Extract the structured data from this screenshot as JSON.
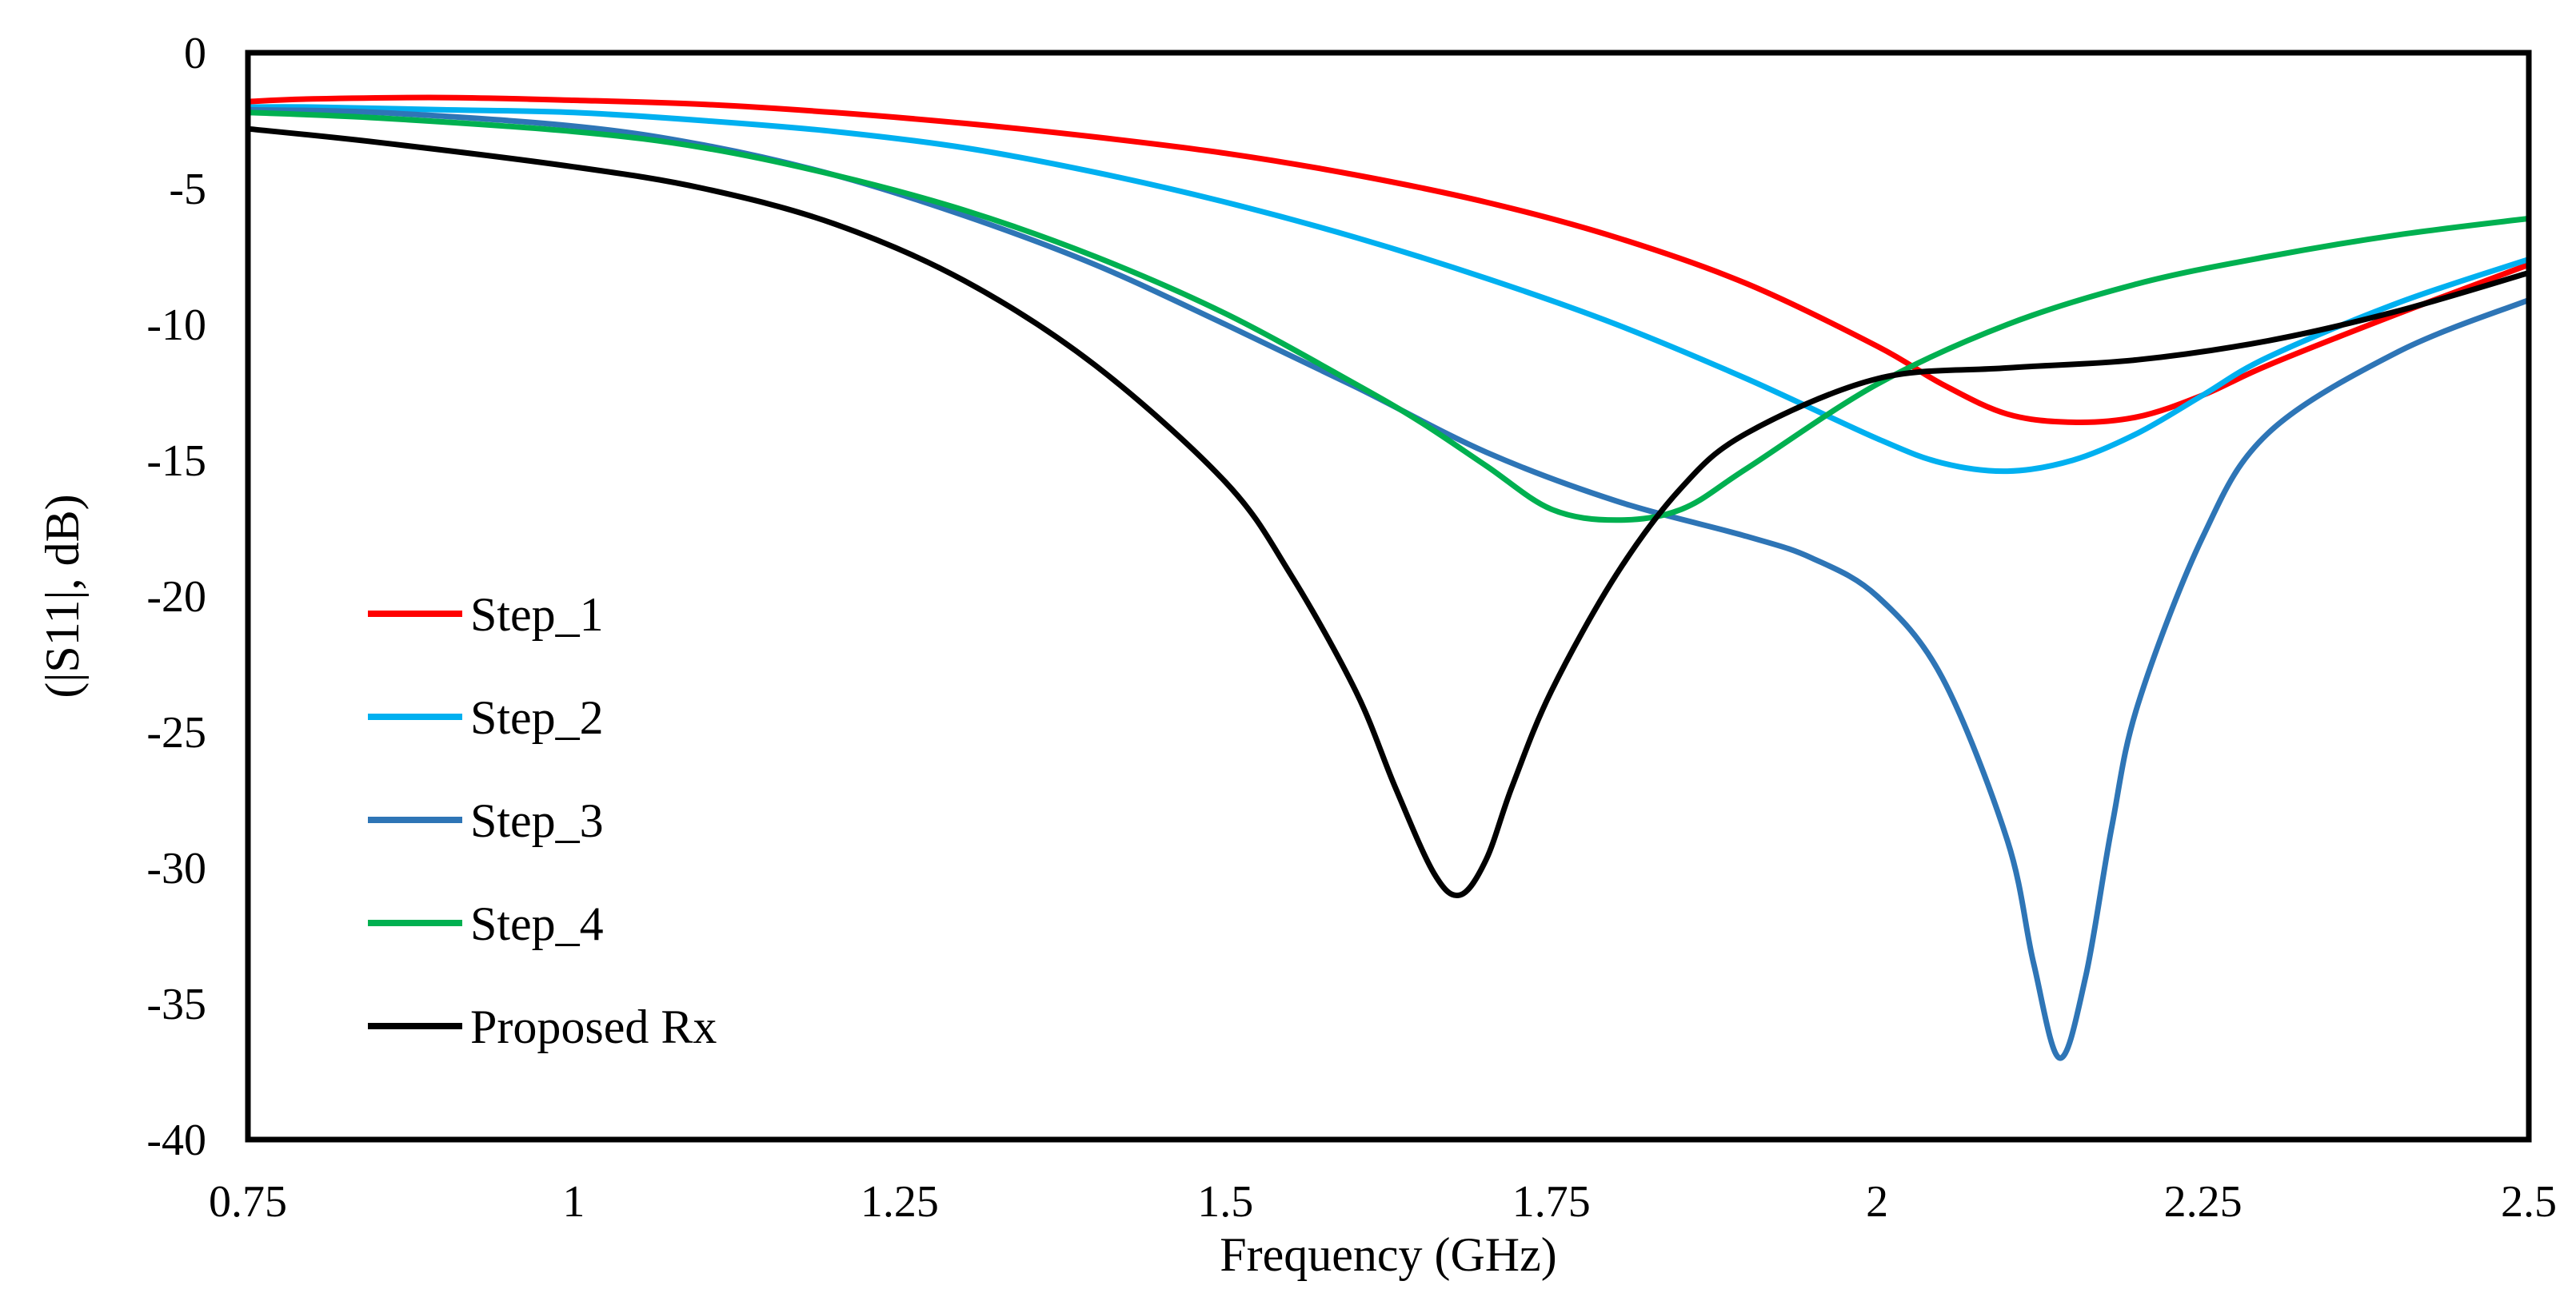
{
  "chart_data": {
    "type": "line",
    "title": "",
    "xlabel": "Frequency (GHz)",
    "ylabel": "(|S11|, dB)",
    "xlim": [
      0.75,
      2.5
    ],
    "ylim": [
      -40,
      0
    ],
    "xticks": [
      0.75,
      1,
      1.25,
      1.5,
      1.75,
      2,
      2.25,
      2.5
    ],
    "xtick_labels": [
      "0.75",
      "1",
      "1.25",
      "1.5",
      "1.75",
      "2",
      "2.25",
      "2.5"
    ],
    "yticks": [
      0,
      -5,
      -10,
      -15,
      -20,
      -25,
      -30,
      -35,
      -40
    ],
    "ytick_labels": [
      "0",
      "-5",
      "-10",
      "-15",
      "-20",
      "-25",
      "-30",
      "-35",
      "-40"
    ],
    "grid": false,
    "legend_position": "left-center",
    "series": [
      {
        "name": "Step_1",
        "color": "#ff0000",
        "x": [
          0.75,
          0.8,
          0.9,
          1.0,
          1.1,
          1.2,
          1.3,
          1.4,
          1.5,
          1.6,
          1.7,
          1.8,
          1.9,
          2.0,
          2.05,
          2.1,
          2.15,
          2.2,
          2.25,
          2.3,
          2.4,
          2.5
        ],
        "y": [
          -1.8,
          -1.7,
          -1.65,
          -1.75,
          -1.9,
          -2.2,
          -2.6,
          -3.1,
          -3.7,
          -4.5,
          -5.5,
          -6.8,
          -8.5,
          -10.8,
          -12.2,
          -13.3,
          -13.6,
          -13.4,
          -12.6,
          -11.5,
          -9.6,
          -7.8
        ]
      },
      {
        "name": "Step_2",
        "color": "#00b0f0",
        "x": [
          0.75,
          0.8,
          0.9,
          1.0,
          1.1,
          1.2,
          1.3,
          1.4,
          1.5,
          1.6,
          1.7,
          1.8,
          1.9,
          2.0,
          2.05,
          2.1,
          2.15,
          2.2,
          2.25,
          2.3,
          2.4,
          2.5
        ],
        "y": [
          -2.0,
          -2.0,
          -2.1,
          -2.2,
          -2.5,
          -2.9,
          -3.5,
          -4.4,
          -5.5,
          -6.8,
          -8.3,
          -10.0,
          -12.0,
          -14.2,
          -15.1,
          -15.4,
          -15.0,
          -14.0,
          -12.6,
          -11.2,
          -9.2,
          -7.6
        ]
      },
      {
        "name": "Step_3",
        "color": "#2e75b6",
        "x": [
          0.75,
          0.85,
          1.0,
          1.1,
          1.2,
          1.3,
          1.4,
          1.5,
          1.6,
          1.7,
          1.8,
          1.9,
          1.95,
          2.0,
          2.05,
          2.1,
          2.12,
          2.14,
          2.16,
          2.18,
          2.2,
          2.25,
          2.3,
          2.4,
          2.5
        ],
        "y": [
          -2.1,
          -2.2,
          -2.7,
          -3.4,
          -4.5,
          -6.0,
          -7.8,
          -10.0,
          -12.3,
          -14.7,
          -16.5,
          -17.8,
          -18.6,
          -20.0,
          -23.0,
          -29.0,
          -33.5,
          -37.0,
          -34.0,
          -28.5,
          -24.0,
          -17.8,
          -14.0,
          -11.0,
          -9.1
        ]
      },
      {
        "name": "Step_4",
        "color": "#00b050",
        "x": [
          0.75,
          0.85,
          1.0,
          1.1,
          1.2,
          1.3,
          1.4,
          1.5,
          1.6,
          1.65,
          1.7,
          1.75,
          1.8,
          1.85,
          1.9,
          2.0,
          2.1,
          2.2,
          2.3,
          2.4,
          2.5
        ],
        "y": [
          -2.2,
          -2.4,
          -2.9,
          -3.5,
          -4.5,
          -5.8,
          -7.5,
          -9.6,
          -12.2,
          -13.6,
          -15.2,
          -16.8,
          -17.2,
          -16.8,
          -15.3,
          -12.2,
          -10.0,
          -8.5,
          -7.5,
          -6.7,
          -6.1
        ]
      },
      {
        "name": "Proposed Rx",
        "color": "#000000",
        "x": [
          0.75,
          0.85,
          1.0,
          1.1,
          1.2,
          1.3,
          1.4,
          1.5,
          1.55,
          1.6,
          1.63,
          1.66,
          1.68,
          1.7,
          1.72,
          1.75,
          1.8,
          1.85,
          1.9,
          2.0,
          2.1,
          2.2,
          2.3,
          2.4,
          2.5
        ],
        "y": [
          -2.8,
          -3.3,
          -4.2,
          -5.0,
          -6.3,
          -8.4,
          -11.5,
          -15.8,
          -19.2,
          -23.5,
          -27.0,
          -30.2,
          -31.0,
          -29.7,
          -27.0,
          -23.5,
          -19.2,
          -16.0,
          -14.0,
          -12.0,
          -11.6,
          -11.3,
          -10.6,
          -9.5,
          -8.1
        ]
      }
    ]
  }
}
